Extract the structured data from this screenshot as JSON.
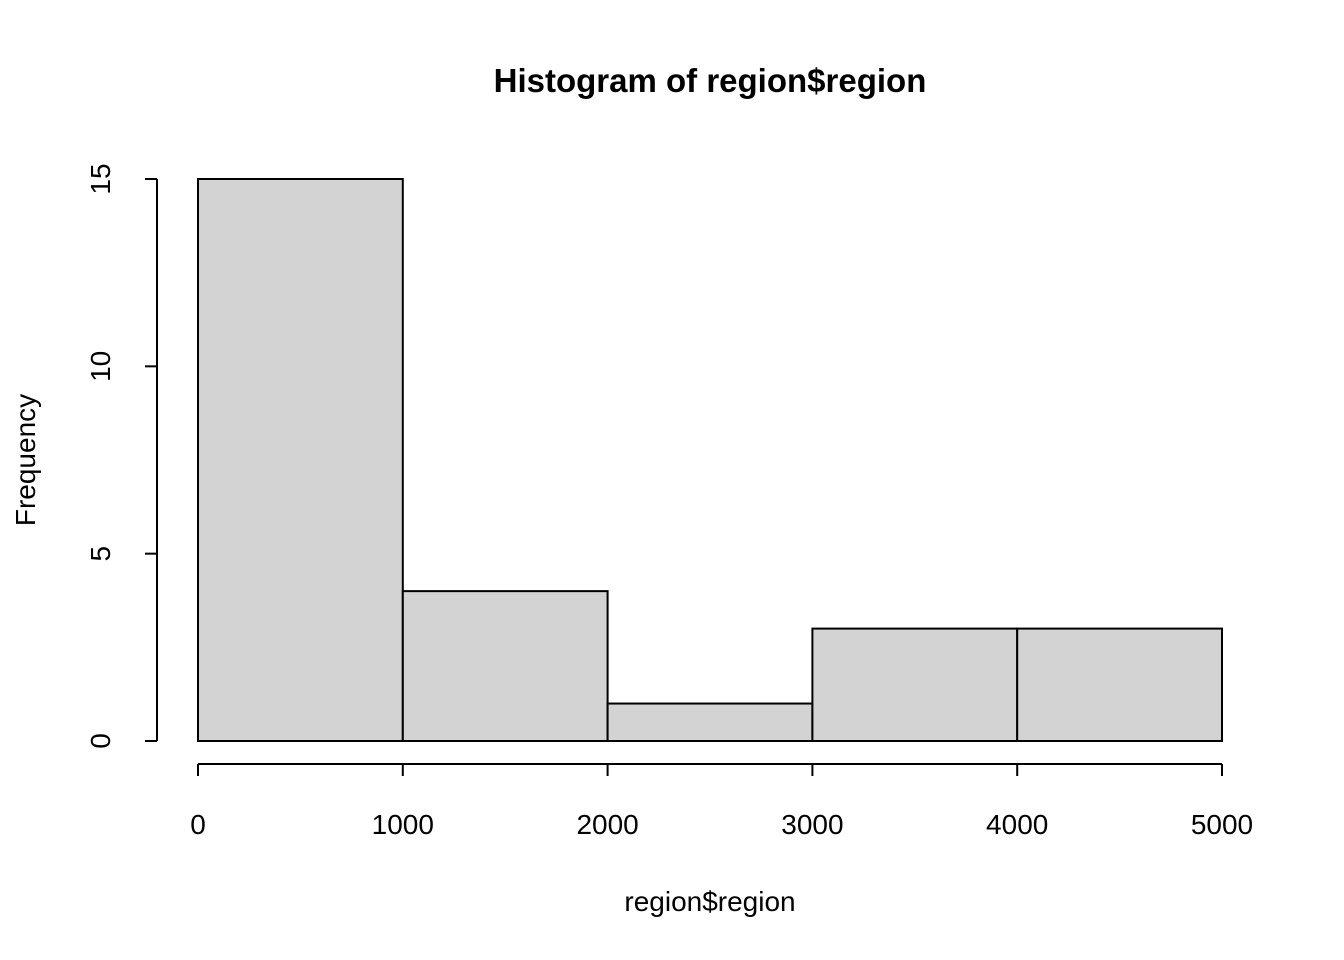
{
  "chart_data": {
    "type": "histogram",
    "title": "Histogram of region$region",
    "x_label": "region$region",
    "y_label": "Frequency",
    "bins": [
      0,
      1000,
      2000,
      3000,
      4000,
      5000
    ],
    "values": [
      15,
      4,
      1,
      3,
      3
    ],
    "color": "#d3d3d3",
    "xlim": [
      0,
      5000
    ],
    "xticks": [
      0,
      1000,
      2000,
      3000,
      4000,
      5000
    ],
    "ylim": [
      0,
      15
    ],
    "yticks": [
      0,
      5,
      10,
      15
    ]
  }
}
